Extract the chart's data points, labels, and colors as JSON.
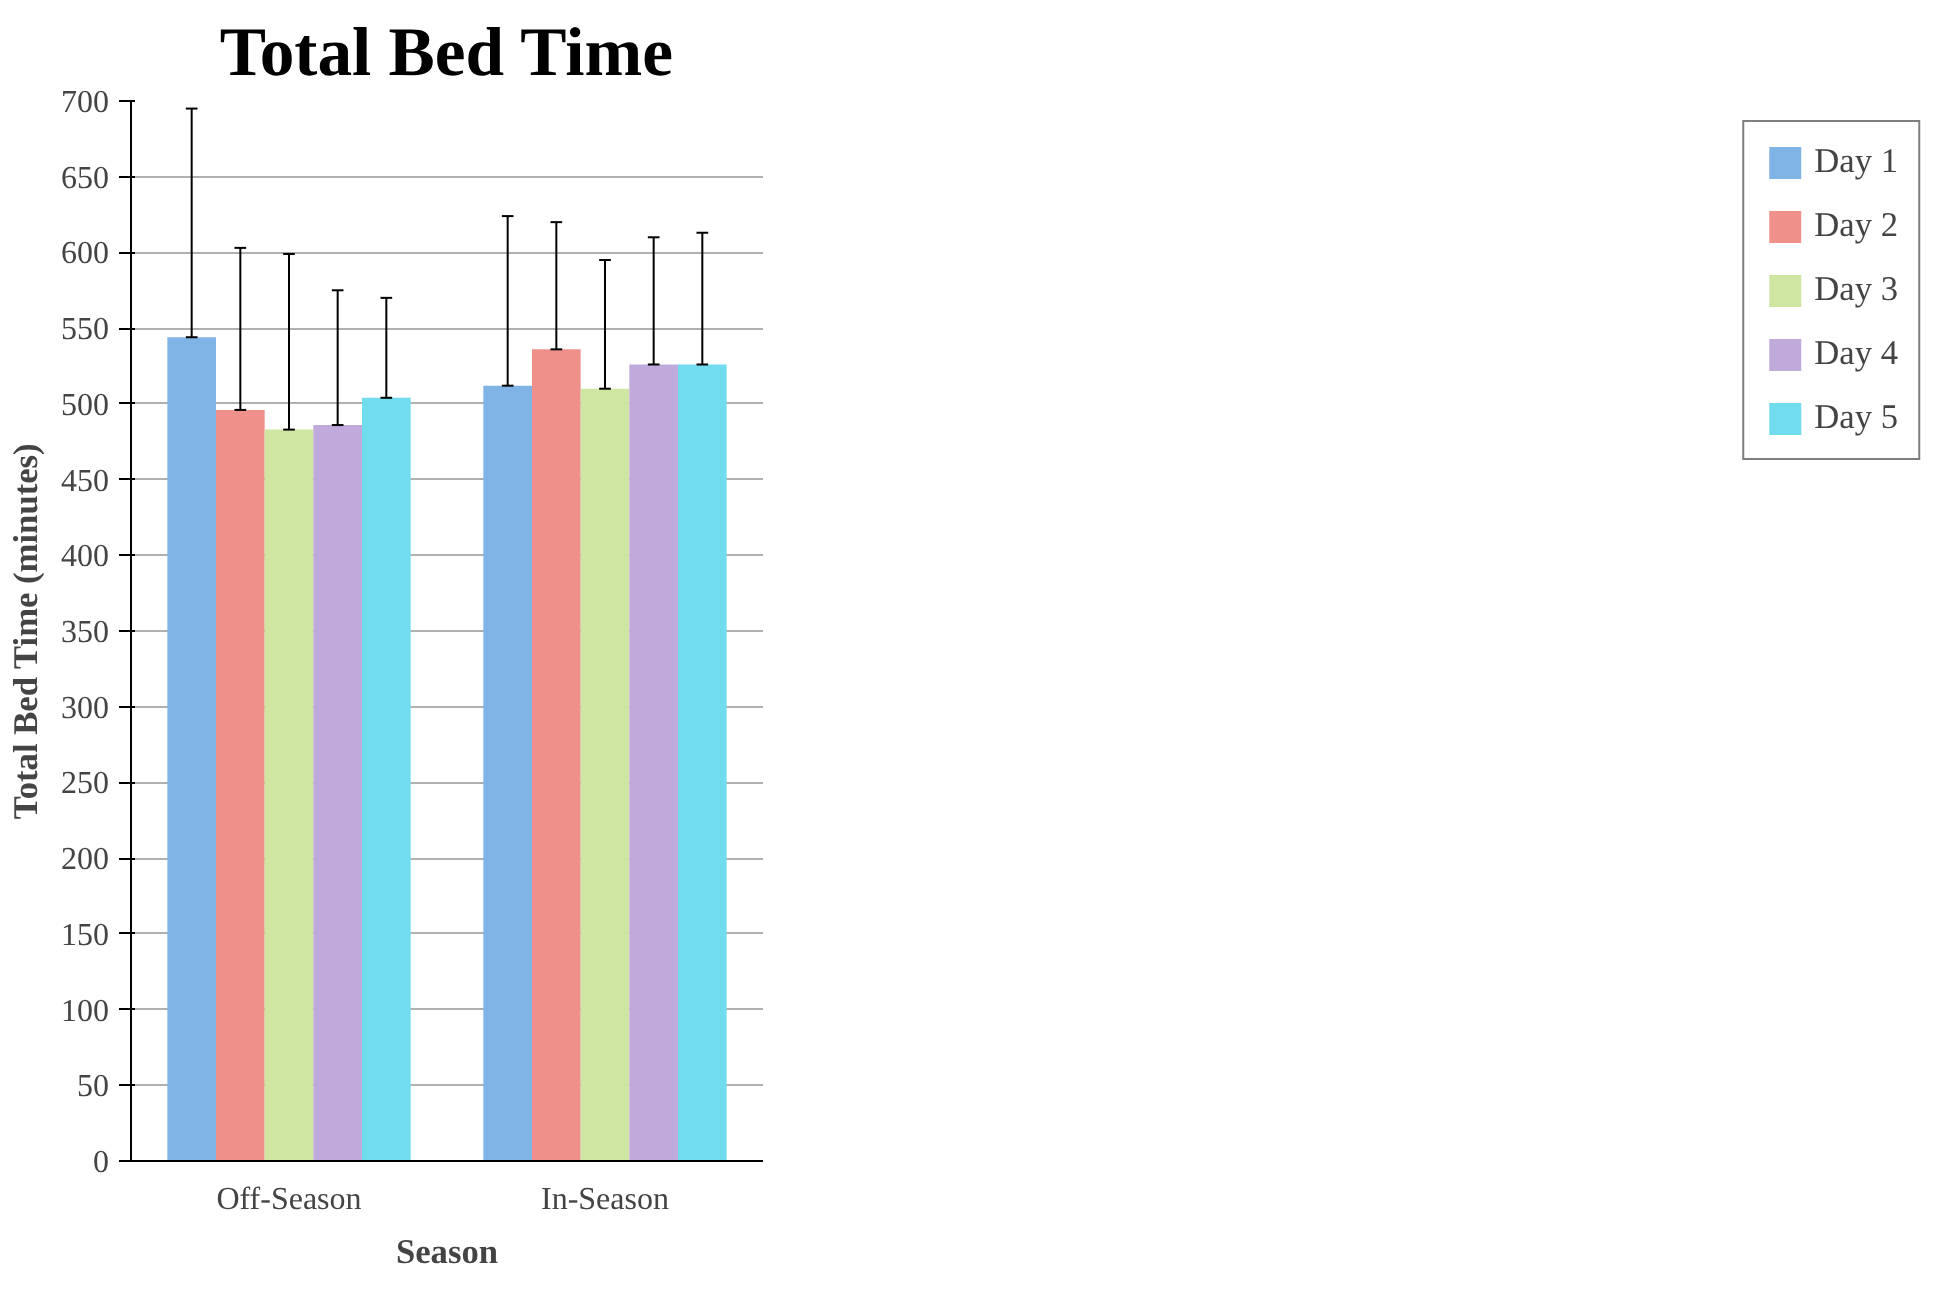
{
  "chart_data": {
    "type": "bar",
    "title": "Total Bed Time",
    "xlabel": "Season",
    "ylabel": "Total Bed Time (minutes)",
    "categories": [
      "Off-Season",
      "In-Season"
    ],
    "series": [
      {
        "name": "Day 1",
        "color": "#80b4e6",
        "values": [
          544,
          512
        ],
        "errors": [
          [
            544,
            695
          ],
          [
            512,
            624
          ]
        ]
      },
      {
        "name": "Day 2",
        "color": "#f0908a",
        "values": [
          496,
          536
        ],
        "errors": [
          [
            496,
            603
          ],
          [
            536,
            620
          ]
        ]
      },
      {
        "name": "Day 3",
        "color": "#cfe6a2",
        "values": [
          483,
          510
        ],
        "errors": [
          [
            483,
            599
          ],
          [
            510,
            595
          ]
        ]
      },
      {
        "name": "Day 4",
        "color": "#c0aadb",
        "values": [
          486,
          526
        ],
        "errors": [
          [
            486,
            575
          ],
          [
            526,
            610
          ]
        ]
      },
      {
        "name": "Day 5",
        "color": "#70dcee",
        "values": [
          504,
          526
        ],
        "errors": [
          [
            504,
            570
          ],
          [
            526,
            613
          ]
        ]
      }
    ],
    "ylim": [
      0,
      700
    ],
    "yticks": [
      0,
      50,
      100,
      150,
      200,
      250,
      300,
      350,
      400,
      450,
      500,
      550,
      600,
      650,
      700
    ],
    "grid": "y",
    "legend": "right"
  }
}
